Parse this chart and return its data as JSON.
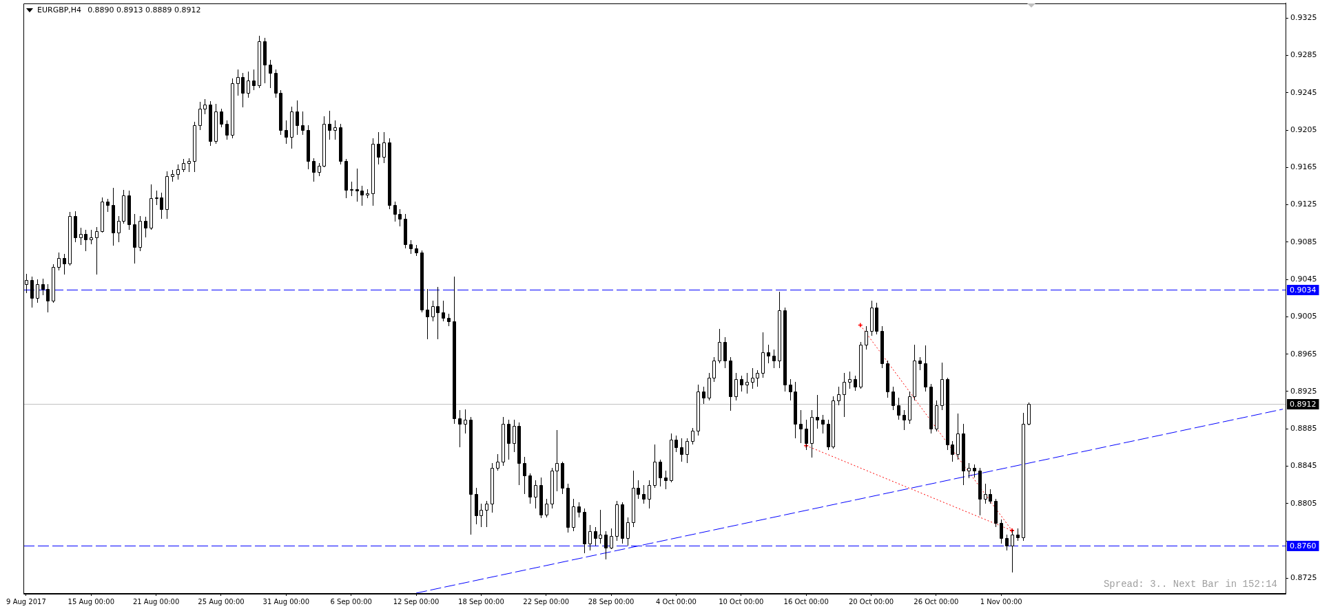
{
  "chart_data": {
    "type": "candlestick",
    "title": "EURGBP,H4",
    "subtitle": "0.8890 0.8913 0.8889 0.8912",
    "annotations": [
      "Spread: 3.. Next Bar in 152:14"
    ],
    "categories": [
      "9 Aug 2017",
      null,
      null,
      null,
      null,
      null,
      null,
      null,
      null,
      null,
      null,
      null,
      "15 Aug 00:00",
      null,
      null,
      null,
      null,
      null,
      null,
      null,
      null,
      null,
      null,
      null,
      "21 Aug 00:00",
      null,
      null,
      null,
      null,
      null,
      null,
      null,
      null,
      null,
      null,
      null,
      "25 Aug 00:00",
      null,
      null,
      null,
      null,
      null,
      null,
      null,
      null,
      null,
      null,
      null,
      "31 Aug 00:00",
      null,
      null,
      null,
      null,
      null,
      null,
      null,
      null,
      null,
      null,
      null,
      "6 Sep 00:00",
      null,
      null,
      null,
      null,
      null,
      null,
      null,
      null,
      null,
      null,
      null,
      "12 Sep 00:00",
      null,
      null,
      null,
      null,
      null,
      null,
      null,
      null,
      null,
      null,
      null,
      "18 Sep 00:00",
      null,
      null,
      null,
      null,
      null,
      null,
      null,
      null,
      null,
      null,
      null,
      "22 Sep 00:00",
      null,
      null,
      null,
      null,
      null,
      null,
      null,
      null,
      null,
      null,
      null,
      "28 Sep 00:00",
      null,
      null,
      null,
      null,
      null,
      null,
      null,
      null,
      null,
      null,
      null,
      "4 Oct 00:00",
      null,
      null,
      null,
      null,
      null,
      null,
      null,
      null,
      null,
      null,
      null,
      "10 Oct 00:00",
      null,
      null,
      null,
      null,
      null,
      null,
      null,
      null,
      null,
      null,
      null,
      "16 Oct 00:00",
      null,
      null,
      null,
      null,
      null,
      null,
      null,
      null,
      null,
      null,
      null,
      "20 Oct 00:00",
      null,
      null,
      null,
      null,
      null,
      null,
      null,
      null,
      null,
      null,
      null,
      "26 Oct 00:00",
      null,
      null,
      null,
      null,
      null,
      null,
      null,
      null,
      null,
      null,
      null,
      "1 Nov 00:00",
      null,
      null,
      null,
      null,
      null,
      null,
      null,
      null,
      null,
      null,
      null,
      null,
      null,
      null,
      null,
      null,
      null,
      null,
      null,
      null,
      null,
      null,
      null,
      null,
      null,
      null,
      null,
      null,
      null,
      null,
      null,
      null,
      null,
      null,
      null,
      null,
      null,
      null,
      null,
      null,
      null,
      null,
      null,
      null,
      null,
      null,
      null,
      null,
      null,
      null,
      null,
      null
    ],
    "ohlc": [
      [
        0.904,
        0.9051,
        0.903,
        0.9044
      ],
      [
        0.9044,
        0.9048,
        0.9015,
        0.9025
      ],
      [
        0.9025,
        0.9045,
        0.902,
        0.904
      ],
      [
        0.904,
        0.9046,
        0.9028,
        0.9035
      ],
      [
        0.9035,
        0.904,
        0.901,
        0.9022
      ],
      [
        0.9022,
        0.9061,
        0.902,
        0.9058
      ],
      [
        0.9058,
        0.9074,
        0.9055,
        0.9068
      ],
      [
        0.9068,
        0.9072,
        0.905,
        0.9062
      ],
      [
        0.9062,
        0.9117,
        0.906,
        0.9113
      ],
      [
        0.9113,
        0.9118,
        0.9085,
        0.909
      ],
      [
        0.909,
        0.91,
        0.9082,
        0.9094
      ],
      [
        0.9094,
        0.9098,
        0.9075,
        0.9088
      ],
      [
        0.9088,
        0.9098,
        0.9083,
        0.909
      ],
      [
        0.909,
        0.9101,
        0.905,
        0.9097
      ],
      [
        0.9097,
        0.9133,
        0.9095,
        0.9128
      ],
      [
        0.9128,
        0.9131,
        0.9117,
        0.9125
      ],
      [
        0.9125,
        0.9143,
        0.9081,
        0.9095
      ],
      [
        0.9095,
        0.9113,
        0.9085,
        0.9108
      ],
      [
        0.9108,
        0.9141,
        0.9105,
        0.9135
      ],
      [
        0.9135,
        0.914,
        0.9098,
        0.9104
      ],
      [
        0.9104,
        0.9115,
        0.9062,
        0.908
      ],
      [
        0.908,
        0.9113,
        0.9075,
        0.9108
      ],
      [
        0.9108,
        0.9112,
        0.909,
        0.91
      ],
      [
        0.91,
        0.9147,
        0.9098,
        0.9132
      ],
      [
        0.9132,
        0.914,
        0.9125,
        0.9133
      ],
      [
        0.9133,
        0.9138,
        0.911,
        0.912
      ],
      [
        0.912,
        0.9161,
        0.911,
        0.9156
      ],
      [
        0.9156,
        0.9162,
        0.915,
        0.9158
      ],
      [
        0.9158,
        0.9168,
        0.9152,
        0.9163
      ],
      [
        0.9163,
        0.9174,
        0.916,
        0.917
      ],
      [
        0.917,
        0.9175,
        0.916,
        0.9172
      ],
      [
        0.9172,
        0.9214,
        0.916,
        0.921
      ],
      [
        0.921,
        0.9235,
        0.9205,
        0.9228
      ],
      [
        0.9228,
        0.9238,
        0.9222,
        0.9232
      ],
      [
        0.9232,
        0.9236,
        0.9188,
        0.9193
      ],
      [
        0.9193,
        0.9233,
        0.919,
        0.9225
      ],
      [
        0.9225,
        0.9228,
        0.9208,
        0.9212
      ],
      [
        0.9212,
        0.9215,
        0.9195,
        0.92
      ],
      [
        0.92,
        0.926,
        0.9196,
        0.9255
      ],
      [
        0.9255,
        0.927,
        0.9242,
        0.9262
      ],
      [
        0.9262,
        0.9266,
        0.9229,
        0.9245
      ],
      [
        0.9245,
        0.9268,
        0.924,
        0.9258
      ],
      [
        0.9258,
        0.927,
        0.9248,
        0.9253
      ],
      [
        0.9253,
        0.9306,
        0.925,
        0.93
      ],
      [
        0.93,
        0.9304,
        0.9255,
        0.9275
      ],
      [
        0.9275,
        0.928,
        0.925,
        0.9266
      ],
      [
        0.9266,
        0.927,
        0.924,
        0.9245
      ],
      [
        0.9245,
        0.9248,
        0.92,
        0.9205
      ],
      [
        0.9205,
        0.9215,
        0.919,
        0.9198
      ],
      [
        0.9198,
        0.923,
        0.9185,
        0.9225
      ],
      [
        0.9225,
        0.9237,
        0.92,
        0.921
      ],
      [
        0.921,
        0.9225,
        0.92,
        0.9205
      ],
      [
        0.9205,
        0.921,
        0.9163,
        0.9172
      ],
      [
        0.9172,
        0.9175,
        0.915,
        0.916
      ],
      [
        0.916,
        0.917,
        0.9156,
        0.9167
      ],
      [
        0.9167,
        0.922,
        0.9165,
        0.9212
      ],
      [
        0.9212,
        0.9226,
        0.9195,
        0.9205
      ],
      [
        0.9205,
        0.9215,
        0.9195,
        0.9208
      ],
      [
        0.9208,
        0.9212,
        0.9168,
        0.9172
      ],
      [
        0.9172,
        0.9174,
        0.9132,
        0.9141
      ],
      [
        0.9141,
        0.915,
        0.9134,
        0.9142
      ],
      [
        0.9142,
        0.9164,
        0.9128,
        0.914
      ],
      [
        0.914,
        0.9145,
        0.9124,
        0.9136
      ],
      [
        0.9136,
        0.9142,
        0.9132,
        0.9137
      ],
      [
        0.9137,
        0.9196,
        0.9124,
        0.919
      ],
      [
        0.919,
        0.9203,
        0.9168,
        0.9176
      ],
      [
        0.9176,
        0.9203,
        0.917,
        0.9192
      ],
      [
        0.9192,
        0.9196,
        0.912,
        0.9125
      ],
      [
        0.9125,
        0.9128,
        0.9107,
        0.9115
      ],
      [
        0.9115,
        0.912,
        0.9102,
        0.911
      ],
      [
        0.911,
        0.9115,
        0.9078,
        0.9083
      ],
      [
        0.9083,
        0.9087,
        0.9072,
        0.9078
      ],
      [
        0.9078,
        0.9082,
        0.907,
        0.9074
      ],
      [
        0.9074,
        0.9076,
        0.901,
        0.9013
      ],
      [
        0.9013,
        0.9035,
        0.8981,
        0.9005
      ],
      [
        0.9005,
        0.9022,
        0.9,
        0.9016
      ],
      [
        0.9016,
        0.9037,
        0.8981,
        0.901
      ],
      [
        0.901,
        0.9022,
        0.9,
        0.9004
      ],
      [
        0.9004,
        0.9008,
        0.8995,
        0.9
      ],
      [
        0.9,
        0.9048,
        0.889,
        0.8896
      ],
      [
        0.8896,
        0.8905,
        0.8865,
        0.889
      ],
      [
        0.889,
        0.8906,
        0.888,
        0.8895
      ],
      [
        0.8895,
        0.8898,
        0.8772,
        0.8815
      ],
      [
        0.8815,
        0.8822,
        0.8783,
        0.8792
      ],
      [
        0.8792,
        0.8805,
        0.878,
        0.8798
      ],
      [
        0.8798,
        0.8808,
        0.878,
        0.8805
      ],
      [
        0.8805,
        0.8848,
        0.8795,
        0.8843
      ],
      [
        0.8843,
        0.8858,
        0.884,
        0.885
      ],
      [
        0.885,
        0.8898,
        0.8845,
        0.889
      ],
      [
        0.889,
        0.8895,
        0.8852,
        0.887
      ],
      [
        0.887,
        0.8895,
        0.886,
        0.8888
      ],
      [
        0.8888,
        0.8892,
        0.8825,
        0.8848
      ],
      [
        0.8848,
        0.8855,
        0.8815,
        0.8835
      ],
      [
        0.8835,
        0.8837,
        0.8805,
        0.8812
      ],
      [
        0.8812,
        0.883,
        0.88,
        0.8825
      ],
      [
        0.8825,
        0.8833,
        0.8789,
        0.8793
      ],
      [
        0.8793,
        0.881,
        0.879,
        0.8805
      ],
      [
        0.8805,
        0.8843,
        0.88,
        0.884
      ],
      [
        0.884,
        0.8884,
        0.8818,
        0.8848
      ],
      [
        0.8848,
        0.885,
        0.8815,
        0.8822
      ],
      [
        0.8822,
        0.8826,
        0.8774,
        0.878
      ],
      [
        0.878,
        0.881,
        0.8775,
        0.8802
      ],
      [
        0.8802,
        0.8806,
        0.879,
        0.8796
      ],
      [
        0.8796,
        0.88,
        0.8752,
        0.8762
      ],
      [
        0.8762,
        0.8782,
        0.8755,
        0.8775
      ],
      [
        0.8775,
        0.878,
        0.876,
        0.8768
      ],
      [
        0.8768,
        0.8798,
        0.8762,
        0.8772
      ],
      [
        0.8772,
        0.8775,
        0.8745,
        0.8758
      ],
      [
        0.8758,
        0.8778,
        0.8756,
        0.877
      ],
      [
        0.877,
        0.8808,
        0.8765,
        0.8804
      ],
      [
        0.8804,
        0.8806,
        0.8762,
        0.8768
      ],
      [
        0.8768,
        0.879,
        0.876,
        0.8785
      ],
      [
        0.8785,
        0.884,
        0.878,
        0.8822
      ],
      [
        0.8822,
        0.883,
        0.881,
        0.8815
      ],
      [
        0.8815,
        0.8825,
        0.8805,
        0.881
      ],
      [
        0.881,
        0.883,
        0.88,
        0.8825
      ],
      [
        0.8825,
        0.8868,
        0.8822,
        0.885
      ],
      [
        0.885,
        0.8852,
        0.8823,
        0.8833
      ],
      [
        0.8833,
        0.884,
        0.882,
        0.883
      ],
      [
        0.883,
        0.888,
        0.8828,
        0.8873
      ],
      [
        0.8873,
        0.8878,
        0.886,
        0.8865
      ],
      [
        0.8865,
        0.8875,
        0.885,
        0.8858
      ],
      [
        0.8858,
        0.8875,
        0.8848,
        0.8872
      ],
      [
        0.8872,
        0.8886,
        0.8868,
        0.8883
      ],
      [
        0.8883,
        0.8932,
        0.8878,
        0.8925
      ],
      [
        0.8925,
        0.893,
        0.8912,
        0.8918
      ],
      [
        0.8918,
        0.8945,
        0.8915,
        0.894
      ],
      [
        0.894,
        0.8962,
        0.8935,
        0.8958
      ],
      [
        0.8958,
        0.8992,
        0.8955,
        0.8978
      ],
      [
        0.8978,
        0.8983,
        0.895,
        0.8958
      ],
      [
        0.8958,
        0.8962,
        0.8904,
        0.892
      ],
      [
        0.892,
        0.8945,
        0.8915,
        0.8938
      ],
      [
        0.8938,
        0.8942,
        0.8925,
        0.8932
      ],
      [
        0.8932,
        0.8945,
        0.8923,
        0.8935
      ],
      [
        0.8935,
        0.895,
        0.8928,
        0.894
      ],
      [
        0.894,
        0.8948,
        0.893,
        0.8945
      ],
      [
        0.8945,
        0.8988,
        0.894,
        0.8967
      ],
      [
        0.8967,
        0.8975,
        0.8955,
        0.8963
      ],
      [
        0.8963,
        0.897,
        0.895,
        0.8958
      ],
      [
        0.8958,
        0.9032,
        0.895,
        0.9012
      ],
      [
        0.9012,
        0.9015,
        0.8925,
        0.8932
      ],
      [
        0.8932,
        0.8938,
        0.8915,
        0.8925
      ],
      [
        0.8925,
        0.8935,
        0.8875,
        0.889
      ],
      [
        0.889,
        0.8905,
        0.887,
        0.8885
      ],
      [
        0.8885,
        0.8895,
        0.8862,
        0.887
      ],
      [
        0.887,
        0.8905,
        0.8854,
        0.8898
      ],
      [
        0.8898,
        0.8921,
        0.8885,
        0.8895
      ],
      [
        0.8895,
        0.89,
        0.888,
        0.889
      ],
      [
        0.889,
        0.8895,
        0.8862,
        0.8866
      ],
      [
        0.8866,
        0.892,
        0.8864,
        0.8915
      ],
      [
        0.8915,
        0.893,
        0.891,
        0.8922
      ],
      [
        0.8922,
        0.8945,
        0.8898,
        0.8935
      ],
      [
        0.8935,
        0.8946,
        0.8928,
        0.8938
      ],
      [
        0.8938,
        0.8942,
        0.8926,
        0.893
      ],
      [
        0.893,
        0.8978,
        0.8928,
        0.8975
      ],
      [
        0.8975,
        0.8995,
        0.897,
        0.899
      ],
      [
        0.899,
        0.9022,
        0.8985,
        0.9015
      ],
      [
        0.9015,
        0.902,
        0.8986,
        0.899
      ],
      [
        0.899,
        0.8995,
        0.895,
        0.8955
      ],
      [
        0.8955,
        0.8958,
        0.8918,
        0.8925
      ],
      [
        0.8925,
        0.893,
        0.8905,
        0.891
      ],
      [
        0.891,
        0.8918,
        0.8895,
        0.89
      ],
      [
        0.89,
        0.8905,
        0.8884,
        0.8895
      ],
      [
        0.8895,
        0.8925,
        0.889,
        0.892
      ],
      [
        0.892,
        0.8975,
        0.8915,
        0.8958
      ],
      [
        0.8958,
        0.8962,
        0.8948,
        0.8955
      ],
      [
        0.8955,
        0.8974,
        0.8925,
        0.893
      ],
      [
        0.893,
        0.8933,
        0.888,
        0.8885
      ],
      [
        0.8885,
        0.8915,
        0.8882,
        0.891
      ],
      [
        0.891,
        0.8956,
        0.8905,
        0.8938
      ],
      [
        0.8938,
        0.894,
        0.8862,
        0.8868
      ],
      [
        0.8868,
        0.8872,
        0.885,
        0.8858
      ],
      [
        0.8858,
        0.8901,
        0.8852,
        0.888
      ],
      [
        0.888,
        0.889,
        0.8825,
        0.884
      ],
      [
        0.884,
        0.8848,
        0.8832,
        0.8843
      ],
      [
        0.8843,
        0.8847,
        0.8833,
        0.884
      ],
      [
        0.884,
        0.8843,
        0.8792,
        0.881
      ],
      [
        0.881,
        0.8826,
        0.8805,
        0.8815
      ],
      [
        0.8815,
        0.882,
        0.8805,
        0.8808
      ],
      [
        0.8808,
        0.881,
        0.878,
        0.8784
      ],
      [
        0.8784,
        0.8788,
        0.8762,
        0.8768
      ],
      [
        0.8768,
        0.8772,
        0.8755,
        0.876
      ],
      [
        0.876,
        0.8777,
        0.8731,
        0.8772
      ],
      [
        0.8772,
        0.8778,
        0.8765,
        0.8769
      ],
      [
        0.8769,
        0.8902,
        0.8765,
        0.889
      ],
      [
        0.889,
        0.8913,
        0.8889,
        0.8912
      ],
      null,
      null,
      null,
      null,
      null,
      null,
      null,
      null,
      null,
      null,
      null,
      null,
      null,
      null,
      null,
      null,
      null,
      null,
      null,
      null,
      null,
      null,
      null,
      null,
      null,
      null,
      null,
      null,
      null,
      null,
      null,
      null,
      null,
      null,
      null,
      null,
      null,
      null,
      null,
      null,
      null,
      null,
      null,
      null,
      null,
      null,
      null
    ],
    "color": "#000000",
    "series": [
      {
        "type": "line",
        "color": "#0000ff",
        "line_style": "dashed",
        "values": [
          null,
          null,
          null,
          null,
          null,
          null,
          null,
          null,
          null,
          null,
          null,
          null,
          null,
          null,
          null,
          null,
          null,
          null,
          null,
          null,
          null,
          null,
          null,
          null,
          null,
          null,
          null,
          null,
          null,
          null,
          null,
          null,
          null,
          null,
          null,
          null,
          null,
          null,
          null,
          null,
          null,
          null,
          null,
          null,
          null,
          null,
          null,
          null,
          null,
          null,
          null,
          null,
          null,
          null,
          null,
          null,
          null,
          null,
          null,
          null,
          null,
          null,
          null,
          null,
          null,
          null,
          null,
          null,
          null,
          null,
          null,
          null,
          0.8709,
          null,
          null,
          null,
          null,
          null,
          null,
          null,
          null,
          null,
          null,
          null,
          null,
          null,
          null,
          null,
          null,
          null,
          null,
          null,
          null,
          null,
          null,
          null,
          null,
          null,
          null,
          null,
          null,
          null,
          null,
          null,
          null,
          null,
          null,
          null,
          null,
          null,
          null,
          null,
          null,
          null,
          null,
          null,
          null,
          null,
          null,
          null,
          null,
          null,
          null,
          null,
          null,
          null,
          null,
          null,
          null,
          null,
          null,
          null,
          null,
          null,
          null,
          null,
          null,
          null,
          null,
          null,
          null,
          null,
          null,
          null,
          null,
          null,
          null,
          null,
          null,
          null,
          null,
          null,
          null,
          null,
          null,
          null,
          null,
          null,
          null,
          null,
          null,
          null,
          null,
          null,
          null,
          null,
          null,
          null,
          null,
          null,
          null,
          null,
          null,
          null,
          null,
          null,
          null,
          null,
          null,
          null,
          null,
          null,
          null,
          null,
          null,
          null,
          null,
          null,
          null,
          null,
          null,
          null,
          null,
          null,
          null,
          null,
          null,
          null,
          null,
          null,
          null,
          null,
          null,
          null,
          null,
          null,
          null,
          null,
          null,
          null,
          null,
          null,
          null,
          null,
          null,
          null,
          null,
          null,
          null,
          null,
          null,
          null,
          null,
          null,
          null,
          null,
          null,
          null,
          null,
          null,
          null,
          null,
          0.8906
        ]
      },
      {
        "type": "line",
        "color": "#ff0000",
        "line_style": "dotted",
        "marker": "cross",
        "values": [
          null,
          null,
          null,
          null,
          null,
          null,
          null,
          null,
          null,
          null,
          null,
          null,
          null,
          null,
          null,
          null,
          null,
          null,
          null,
          null,
          null,
          null,
          null,
          null,
          null,
          null,
          null,
          null,
          null,
          null,
          null,
          null,
          null,
          null,
          null,
          null,
          null,
          null,
          null,
          null,
          null,
          null,
          null,
          null,
          null,
          null,
          null,
          null,
          null,
          null,
          null,
          null,
          null,
          null,
          null,
          null,
          null,
          null,
          null,
          null,
          null,
          null,
          null,
          null,
          null,
          null,
          null,
          null,
          null,
          null,
          null,
          null,
          null,
          null,
          null,
          null,
          null,
          null,
          null,
          null,
          null,
          null,
          null,
          null,
          null,
          null,
          null,
          null,
          null,
          null,
          null,
          null,
          null,
          null,
          null,
          null,
          null,
          null,
          null,
          null,
          null,
          null,
          null,
          null,
          null,
          null,
          null,
          null,
          null,
          null,
          null,
          null,
          null,
          null,
          null,
          null,
          null,
          null,
          null,
          null,
          null,
          null,
          null,
          null,
          null,
          null,
          null,
          null,
          null,
          null,
          null,
          null,
          null,
          null,
          null,
          null,
          null,
          null,
          null,
          null,
          null,
          null,
          null,
          null,
          0.8867,
          null,
          null,
          null,
          null,
          null,
          null,
          null,
          null,
          null,
          null,
          null,
          null,
          null,
          null,
          null,
          null,
          null,
          null,
          null,
          null,
          null,
          null,
          null,
          null,
          null,
          null,
          null,
          null,
          null,
          null,
          null,
          null,
          null,
          null,
          null,
          null,
          null,
          0.8776,
          null,
          null,
          null,
          null,
          null,
          null,
          null,
          null,
          null,
          null,
          null,
          null,
          null,
          null,
          null,
          null,
          null,
          null,
          null,
          null,
          null,
          null,
          null,
          null,
          null,
          null,
          null,
          null,
          null,
          null,
          null,
          null,
          null,
          null,
          null,
          null,
          null,
          null,
          null,
          null,
          null,
          null,
          null,
          null,
          null,
          null,
          null,
          null,
          null,
          null
        ]
      },
      {
        "type": "line",
        "color": "#ff0000",
        "line_style": "dotted",
        "marker": "cross",
        "values": [
          null,
          null,
          null,
          null,
          null,
          null,
          null,
          null,
          null,
          null,
          null,
          null,
          null,
          null,
          null,
          null,
          null,
          null,
          null,
          null,
          null,
          null,
          null,
          null,
          null,
          null,
          null,
          null,
          null,
          null,
          null,
          null,
          null,
          null,
          null,
          null,
          null,
          null,
          null,
          null,
          null,
          null,
          null,
          null,
          null,
          null,
          null,
          null,
          null,
          null,
          null,
          null,
          null,
          null,
          null,
          null,
          null,
          null,
          null,
          null,
          null,
          null,
          null,
          null,
          null,
          null,
          null,
          null,
          null,
          null,
          null,
          null,
          null,
          null,
          null,
          null,
          null,
          null,
          null,
          null,
          null,
          null,
          null,
          null,
          null,
          null,
          null,
          null,
          null,
          null,
          null,
          null,
          null,
          null,
          null,
          null,
          null,
          null,
          null,
          null,
          null,
          null,
          null,
          null,
          null,
          null,
          null,
          null,
          null,
          null,
          null,
          null,
          null,
          null,
          null,
          null,
          null,
          null,
          null,
          null,
          null,
          null,
          null,
          null,
          null,
          null,
          null,
          null,
          null,
          null,
          null,
          null,
          null,
          null,
          null,
          null,
          null,
          null,
          null,
          null,
          null,
          null,
          null,
          null,
          null,
          null,
          null,
          null,
          null,
          null,
          null,
          null,
          null,
          null,
          0.8996,
          null,
          null,
          null,
          null,
          null,
          null,
          null,
          null,
          null,
          null,
          null,
          null,
          null,
          null,
          null,
          null,
          null,
          null,
          null,
          null,
          null,
          null,
          null,
          null,
          null,
          null,
          null,
          0.8776,
          null,
          null,
          null,
          null,
          null,
          null,
          null,
          null,
          null,
          null,
          null,
          null,
          null,
          null,
          null,
          null,
          null,
          null,
          null,
          null,
          null,
          null,
          null,
          null,
          null,
          null,
          null,
          null,
          null,
          null,
          null,
          null,
          null,
          null,
          null,
          null,
          null,
          null,
          null,
          null,
          null,
          null,
          null,
          null,
          null,
          null,
          null,
          null,
          null,
          null
        ]
      }
    ],
    "ylim": [
      0.8709,
      0.9341
    ],
    "yticks": [
      0.8725,
      {
        "value": 0.8765,
        "label": null
      },
      0.8805,
      0.8845,
      0.8885,
      0.8925,
      0.8965,
      0.9005,
      0.9045,
      0.9085,
      0.9125,
      0.9165,
      0.9205,
      0.9245,
      0.9285,
      0.9325
    ],
    "ref_lines": [
      {
        "axis": "y",
        "value": 0.9034,
        "label": "0.9034",
        "color": "#0000ff",
        "line_style": "dashed"
      },
      {
        "axis": "y",
        "value": 0.876,
        "label": "0.8760",
        "color": "#0000ff",
        "line_style": "dashed"
      },
      {
        "axis": "y",
        "value": 0.8912,
        "label": "0.8912",
        "color": "#c0c0c0",
        "line_style": "solid"
      }
    ]
  }
}
